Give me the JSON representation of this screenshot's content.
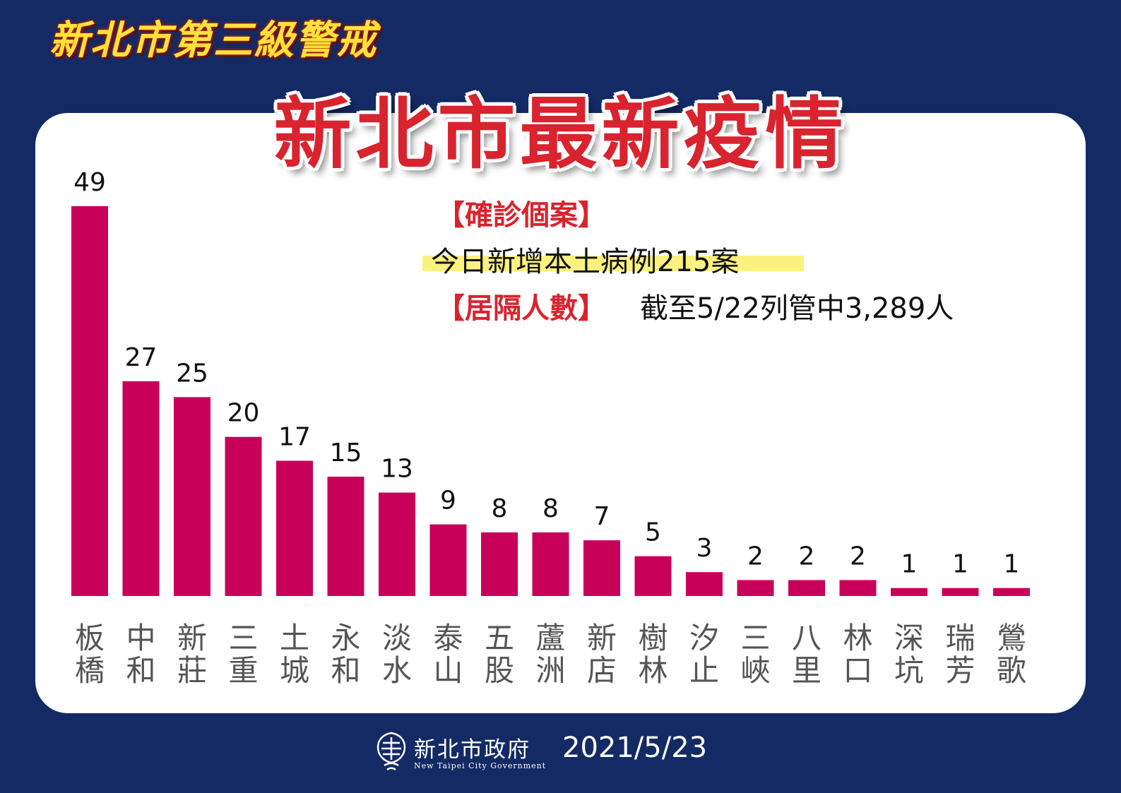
{
  "header": {
    "alert_title": "新北市第三級警戒",
    "main_title": "新北市最新疫情"
  },
  "info": {
    "confirmed_heading": "【確診個案】",
    "confirmed_text": "今日新增本土病例215案",
    "quarantine_heading": "【居隔人數】",
    "quarantine_text": "截至5/22列管中3,289人"
  },
  "footer": {
    "org_name": "新北市政府",
    "org_name_en": "New Taipei City Government",
    "date": "2021/5/23"
  },
  "colors": {
    "background": "#132a64",
    "bar": "#c8005a",
    "title_red": "#d9232e",
    "alert_yellow": "#ffe23a",
    "highlight": "#fbf27d"
  },
  "chart_data": {
    "type": "bar",
    "categories": [
      "板橋",
      "中和",
      "新莊",
      "三重",
      "土城",
      "永和",
      "淡水",
      "泰山",
      "五股",
      "蘆洲",
      "新店",
      "樹林",
      "汐止",
      "三峽",
      "八里",
      "林口",
      "深坑",
      "瑞芳",
      "鶯歌"
    ],
    "values": [
      49,
      27,
      25,
      20,
      17,
      15,
      13,
      9,
      8,
      8,
      7,
      5,
      3,
      2,
      2,
      2,
      1,
      1,
      1
    ],
    "title": "",
    "xlabel": "",
    "ylabel": "",
    "ylim": [
      0,
      49
    ],
    "grid": false,
    "legend": "none"
  }
}
